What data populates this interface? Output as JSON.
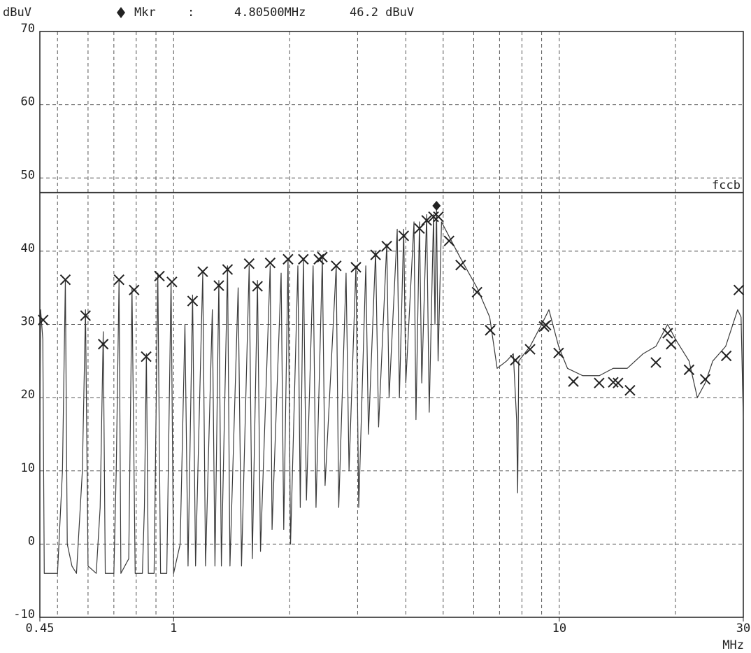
{
  "chart_data": {
    "type": "line",
    "y_axis_label": "dBuV",
    "x_axis_label": "MHz",
    "xscale": "log",
    "xlim": [
      0.45,
      30
    ],
    "ylim": [
      -10,
      70
    ],
    "xticks": [
      0.45,
      1,
      10,
      30
    ],
    "x_gridlines": [
      0.5,
      0.6,
      0.7,
      0.8,
      0.9,
      1,
      2,
      3,
      4,
      5,
      6,
      7,
      8,
      9,
      10,
      20
    ],
    "yticks": [
      -10,
      0,
      10,
      20,
      30,
      40,
      50,
      60,
      70
    ],
    "grid": true,
    "marker": {
      "label": "Mkr",
      "separator": ":",
      "x": 4.805,
      "y": 46.2,
      "value_labels": [
        "4.80500MHz",
        "46.2 dBuV"
      ]
    },
    "limit_line": {
      "name": "fccb",
      "value": 48,
      "color": "#333333"
    },
    "series": [
      {
        "color": "#3a3a3a",
        "x": [
          0.45,
          0.452,
          0.458,
          0.462,
          0.5,
          0.515,
          0.524,
          0.53,
          0.545,
          0.56,
          0.58,
          0.591,
          0.6,
          0.63,
          0.645,
          0.657,
          0.665,
          0.7,
          0.71,
          0.722,
          0.73,
          0.765,
          0.78,
          0.795,
          0.83,
          0.84,
          0.85,
          0.86,
          0.89,
          0.91,
          0.925,
          0.96,
          0.985,
          1.0,
          1.04,
          1.07,
          1.09,
          1.12,
          1.14,
          1.19,
          1.21,
          1.26,
          1.28,
          1.31,
          1.33,
          1.38,
          1.4,
          1.47,
          1.5,
          1.57,
          1.6,
          1.65,
          1.68,
          1.78,
          1.8,
          1.9,
          1.93,
          1.98,
          2.01,
          2.1,
          2.13,
          2.17,
          2.21,
          2.3,
          2.34,
          2.43,
          2.47,
          2.64,
          2.68,
          2.8,
          2.85,
          2.97,
          3.02,
          3.15,
          3.2,
          3.34,
          3.4,
          3.57,
          3.62,
          3.8,
          3.85,
          3.95,
          4.0,
          4.2,
          4.25,
          4.34,
          4.4,
          4.53,
          4.6,
          4.72,
          4.76,
          4.805,
          4.85,
          4.95,
          5.18,
          5.55,
          6.12,
          6.6,
          6.9,
          7.3,
          7.6,
          7.75,
          7.8,
          7.85,
          8.4,
          9.0,
          9.4,
          9.96,
          10.5,
          11.5,
          12.7,
          13.8,
          15,
          16.5,
          17.8,
          19.1,
          20,
          21.7,
          22.8,
          23.9,
          25,
          27,
          29,
          29.6,
          30
        ],
        "values": [
          15,
          32,
          28,
          -4,
          -4,
          10,
          36,
          0,
          -3,
          -4,
          10,
          32,
          -3,
          -4,
          5,
          29,
          -4,
          -4,
          10,
          36,
          -4,
          -2,
          35,
          -4,
          -4,
          5,
          26,
          -4,
          -4,
          37,
          -4,
          -4,
          36,
          -4,
          0,
          30,
          -3,
          34,
          -3,
          37,
          -3,
          32,
          -3,
          36,
          -3,
          38,
          -3,
          35,
          -3,
          38,
          -2,
          36,
          -1,
          38,
          2,
          37,
          2,
          39,
          0,
          38,
          5,
          39,
          6,
          38,
          5,
          39,
          8,
          38,
          5,
          37,
          10,
          38,
          5,
          38,
          15,
          40,
          16,
          41,
          20,
          43,
          20,
          43,
          22,
          44,
          17,
          44,
          22,
          45,
          18,
          45,
          30,
          46.2,
          25,
          44,
          42,
          39,
          35,
          31,
          24,
          25,
          26,
          17,
          7,
          25,
          27,
          30,
          32,
          27,
          24,
          23,
          23,
          24,
          24,
          26,
          27,
          30,
          28,
          25,
          20,
          22,
          25,
          27,
          32,
          31,
          17
        ]
      }
    ],
    "points": {
      "color": "#222222",
      "x": [
        0.459,
        0.524,
        0.591,
        0.657,
        0.722,
        0.79,
        0.849,
        0.919,
        0.99,
        1.12,
        1.19,
        1.31,
        1.38,
        1.57,
        1.65,
        1.78,
        1.98,
        2.17,
        2.38,
        2.43,
        2.64,
        2.97,
        3.34,
        3.57,
        3.95,
        4.34,
        4.53,
        4.72,
        4.86,
        5.18,
        5.55,
        6.12,
        6.62,
        7.69,
        8.4,
        9.13,
        9.24,
        9.96,
        10.88,
        12.69,
        13.8,
        14.2,
        15.25,
        17.8,
        19.1,
        19.5,
        21.7,
        23.9,
        27.1,
        29.2
      ],
      "values": [
        30.6,
        36.1,
        31.2,
        27.3,
        36.1,
        34.7,
        25.6,
        36.6,
        35.8,
        33.2,
        37.2,
        35.3,
        37.5,
        38.3,
        35.2,
        38.4,
        38.9,
        38.9,
        38.9,
        39.2,
        38.0,
        37.8,
        39.5,
        40.7,
        42.1,
        43.1,
        44.2,
        44.7,
        44.7,
        41.4,
        38.1,
        34.4,
        29.2,
        25.1,
        26.6,
        29.7,
        29.9,
        26.1,
        22.2,
        22.0,
        22.1,
        22.0,
        21.0,
        24.8,
        28.8,
        27.3,
        23.8,
        22.5,
        25.7,
        34.7
      ]
    }
  }
}
